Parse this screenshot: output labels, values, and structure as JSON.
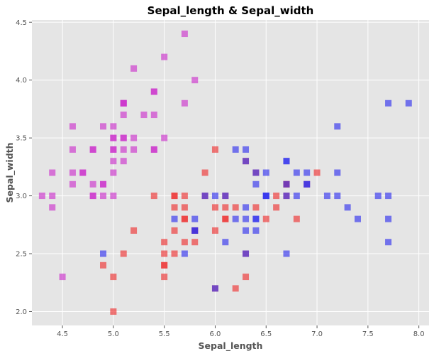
{
  "chart_data": {
    "type": "scatter",
    "title": "Sepal_length & Sepal_width",
    "xlabel": "Sepal_length",
    "ylabel": "Sepal_width",
    "xlim": [
      4.2,
      8.1
    ],
    "ylim": [
      1.88,
      4.52
    ],
    "xticks": [
      "4.5",
      "5.0",
      "5.5",
      "6.0",
      "6.5",
      "7.0",
      "7.5",
      "8.0"
    ],
    "yticks": [
      "2.0",
      "2.5",
      "3.0",
      "3.5",
      "4.0",
      "4.5"
    ],
    "grid": true,
    "background": "#e5e5e5",
    "series": [
      {
        "color": "#cc33cc",
        "x": [
          5.1,
          4.9,
          4.7,
          4.6,
          5.0,
          5.4,
          4.6,
          5.0,
          4.4,
          4.9,
          5.4,
          4.8,
          4.8,
          4.3,
          5.8,
          5.7,
          5.4,
          5.1,
          5.7,
          5.1,
          5.4,
          5.1,
          4.6,
          5.1,
          4.8,
          5.0,
          5.0,
          5.2,
          5.2,
          4.7,
          4.8,
          5.4,
          5.2,
          5.5,
          4.9,
          5.0,
          5.5,
          4.9,
          4.4,
          5.1,
          5.0,
          4.5,
          4.4,
          5.0,
          5.1,
          4.8,
          5.1,
          4.6,
          5.3,
          5.0
        ],
        "y": [
          3.5,
          3.0,
          3.2,
          3.1,
          3.6,
          3.9,
          3.4,
          3.4,
          2.9,
          3.1,
          3.7,
          3.4,
          3.0,
          3.0,
          4.0,
          4.4,
          3.9,
          3.5,
          3.8,
          3.8,
          3.4,
          3.7,
          3.6,
          3.3,
          3.4,
          3.0,
          3.4,
          3.5,
          3.4,
          3.2,
          3.1,
          3.4,
          4.1,
          4.2,
          3.1,
          3.2,
          3.5,
          3.6,
          3.0,
          3.4,
          3.5,
          2.3,
          3.2,
          3.5,
          3.8,
          3.0,
          3.8,
          3.2,
          3.7,
          3.3
        ]
      },
      {
        "color": "#ee3333",
        "x": [
          7.0,
          6.4,
          6.9,
          5.5,
          6.5,
          5.7,
          6.3,
          4.9,
          6.6,
          5.2,
          5.0,
          5.9,
          6.0,
          6.1,
          5.6,
          6.7,
          5.6,
          5.8,
          6.2,
          5.6,
          5.9,
          6.1,
          6.3,
          6.1,
          6.4,
          6.6,
          6.8,
          6.7,
          6.0,
          5.7,
          5.5,
          5.5,
          5.8,
          6.0,
          5.4,
          6.0,
          6.7,
          6.3,
          5.6,
          5.5,
          5.5,
          6.1,
          5.8,
          5.0,
          5.6,
          5.7,
          5.7,
          6.2,
          5.1,
          5.7
        ],
        "y": [
          3.2,
          3.2,
          3.1,
          2.3,
          2.8,
          2.8,
          3.3,
          2.4,
          2.9,
          2.7,
          2.0,
          3.0,
          2.2,
          2.9,
          2.9,
          3.1,
          3.0,
          2.7,
          2.2,
          2.5,
          3.2,
          2.8,
          2.5,
          2.8,
          2.9,
          3.0,
          2.8,
          3.0,
          2.9,
          2.6,
          2.4,
          2.4,
          2.7,
          2.7,
          3.0,
          3.4,
          3.1,
          2.3,
          3.0,
          2.5,
          2.6,
          3.0,
          2.6,
          2.3,
          2.7,
          3.0,
          2.9,
          2.9,
          2.5,
          2.8
        ]
      },
      {
        "color": "#3333ee",
        "x": [
          6.3,
          5.8,
          7.1,
          6.3,
          6.5,
          7.6,
          4.9,
          7.3,
          6.7,
          7.2,
          6.5,
          6.4,
          6.8,
          5.7,
          5.8,
          6.4,
          6.5,
          7.7,
          7.7,
          6.0,
          6.9,
          5.6,
          7.7,
          6.3,
          6.7,
          7.2,
          6.2,
          6.1,
          6.4,
          7.2,
          7.4,
          7.9,
          6.4,
          6.3,
          6.1,
          7.7,
          6.3,
          6.4,
          6.0,
          6.9,
          6.7,
          6.9,
          5.8,
          6.8,
          6.7,
          6.7,
          6.3,
          6.5,
          6.2,
          5.9
        ],
        "y": [
          3.3,
          2.7,
          3.0,
          2.9,
          3.0,
          3.0,
          2.5,
          2.9,
          2.5,
          3.6,
          3.2,
          2.7,
          3.0,
          2.5,
          2.8,
          3.2,
          3.0,
          3.8,
          2.6,
          2.2,
          3.2,
          2.8,
          2.8,
          2.7,
          3.3,
          3.2,
          2.8,
          3.0,
          2.8,
          3.0,
          2.8,
          3.8,
          2.8,
          2.8,
          2.6,
          3.0,
          3.4,
          3.1,
          3.0,
          3.1,
          3.1,
          3.1,
          2.7,
          3.2,
          3.3,
          3.0,
          2.5,
          3.0,
          3.4,
          3.0
        ]
      }
    ]
  }
}
